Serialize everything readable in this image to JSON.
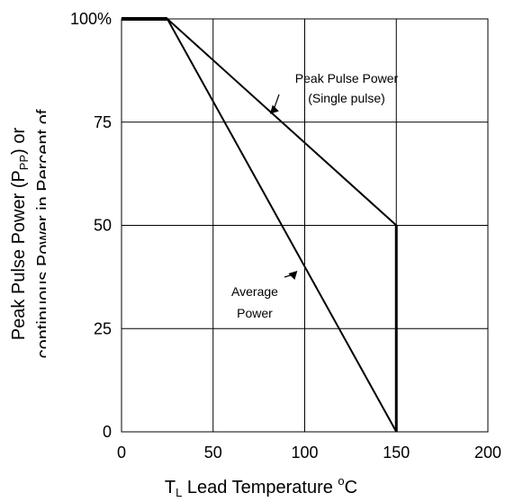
{
  "chart_data": {
    "type": "line",
    "title": "",
    "xlabel": {
      "main": "T",
      "sub": "L",
      "rest": " Lead Temperature ",
      "sup": "o",
      "end": "C"
    },
    "ylabel": {
      "line1_a": "Peak Pulse Power (P",
      "line1_sub": "PP",
      "line1_b": ") or",
      "line2": "continuous Power in Percent of"
    },
    "xlim": [
      0,
      200
    ],
    "ylim": [
      0,
      100
    ],
    "x_ticks": [
      0,
      50,
      100,
      150,
      200
    ],
    "x_tick_labels": [
      "0",
      "50",
      "100",
      "150",
      "200"
    ],
    "y_ticks": [
      0,
      25,
      50,
      75,
      100
    ],
    "y_tick_labels": [
      "0",
      "25",
      "50",
      "75",
      "100%"
    ],
    "grid": true,
    "series": [
      {
        "name": "Peak Pulse Power (Single pulse)",
        "x": [
          0,
          25,
          150,
          150
        ],
        "y": [
          100,
          100,
          50,
          0
        ]
      },
      {
        "name": "Average Power",
        "x": [
          0,
          25,
          150
        ],
        "y": [
          100,
          100,
          0
        ]
      }
    ],
    "annotations": [
      {
        "lines": [
          "Peak Pulse Power",
          "(Single pulse)"
        ],
        "points_to_series": "Peak Pulse Power (Single pulse)",
        "arrow_at": [
          81,
          77
        ]
      },
      {
        "lines": [
          "Average",
          "Power"
        ],
        "points_to_series": "Average Power",
        "arrow_at": [
          96,
          39
        ]
      }
    ],
    "colors": {
      "line": "#000000",
      "grid": "#000000",
      "background": "#ffffff"
    }
  }
}
